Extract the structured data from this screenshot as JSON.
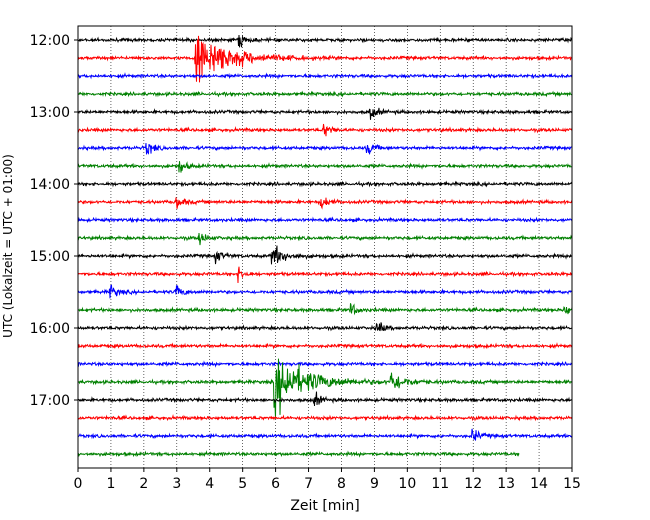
{
  "chart_data": {
    "type": "line",
    "title": "",
    "xlabel": "Zeit  [min]",
    "ylabel": "UTC (Lokalzeit = UTC + 01:00)",
    "xlim": [
      0,
      15
    ],
    "x_ticks": [
      "0",
      "1",
      "2",
      "3",
      "4",
      "5",
      "6",
      "7",
      "8",
      "9",
      "10",
      "11",
      "12",
      "13",
      "14",
      "15"
    ],
    "y_ticks": [
      "12:00",
      "13:00",
      "14:00",
      "15:00",
      "16:00",
      "17:00"
    ],
    "grid": "vertical dotted",
    "colors": [
      "#000000",
      "#ff0000",
      "#0000ff",
      "#008000"
    ],
    "start_time": "12:00",
    "trace_minutes": 15,
    "end_minute_last_trace": 13.4,
    "events": [
      {
        "trace": 1,
        "minute": 3.6,
        "amplitude": "very large"
      },
      {
        "trace": 0,
        "minute": 4.9,
        "amplitude": "small"
      },
      {
        "trace": 4,
        "minute": 8.9,
        "amplitude": "small"
      },
      {
        "trace": 5,
        "minute": 7.5,
        "amplitude": "small"
      },
      {
        "trace": 6,
        "minute": 2.1,
        "amplitude": "small"
      },
      {
        "trace": 6,
        "minute": 8.8,
        "amplitude": "small"
      },
      {
        "trace": 7,
        "minute": 3.1,
        "amplitude": "small"
      },
      {
        "trace": 9,
        "minute": 3.0,
        "amplitude": "small"
      },
      {
        "trace": 9,
        "minute": 7.4,
        "amplitude": "small"
      },
      {
        "trace": 11,
        "minute": 3.7,
        "amplitude": "small"
      },
      {
        "trace": 12,
        "minute": 4.2,
        "amplitude": "small"
      },
      {
        "trace": 12,
        "minute": 5.9,
        "amplitude": "medium"
      },
      {
        "trace": 13,
        "minute": 4.9,
        "amplitude": "small"
      },
      {
        "trace": 14,
        "minute": 1.0,
        "amplitude": "small"
      },
      {
        "trace": 14,
        "minute": 3.0,
        "amplitude": "small"
      },
      {
        "trace": 15,
        "minute": 8.3,
        "amplitude": "small"
      },
      {
        "trace": 15,
        "minute": 14.8,
        "amplitude": "small"
      },
      {
        "trace": 16,
        "minute": 9.1,
        "amplitude": "small"
      },
      {
        "trace": 19,
        "minute": 6.0,
        "amplitude": "very large"
      },
      {
        "trace": 19,
        "minute": 9.5,
        "amplitude": "medium"
      },
      {
        "trace": 20,
        "minute": 7.2,
        "amplitude": "small"
      },
      {
        "trace": 22,
        "minute": 12.0,
        "amplitude": "small"
      }
    ]
  }
}
